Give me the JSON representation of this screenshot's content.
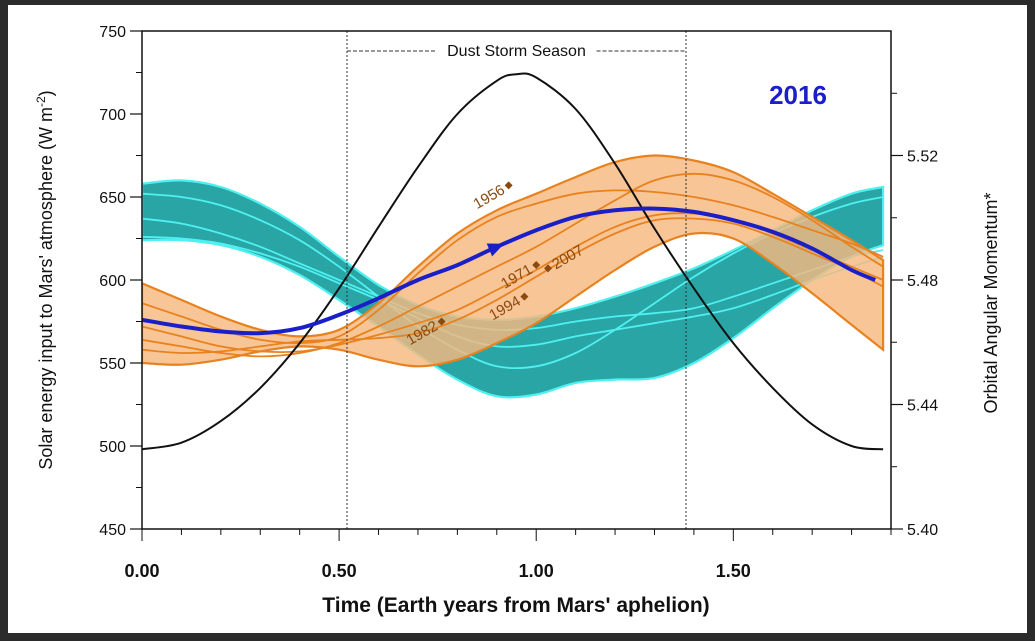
{
  "chart_data": {
    "type": "line",
    "title": "2016",
    "xlabel": "Time (Earth years from Mars' aphelion)",
    "ylabel_left": "Solar energy input to Mars' atmosphere (W m",
    "ylabel_left_sup": "-2",
    "ylabel_left_close": ")",
    "ylabel_right": "Orbital Angular Momentum*",
    "xlim": [
      0,
      1.9
    ],
    "ylim_left": [
      450,
      750
    ],
    "ylim_right": [
      5.4,
      5.56
    ],
    "x_ticks": [
      "0.00",
      "0.50",
      "1.00",
      "1.50"
    ],
    "x_tick_values": [
      0,
      0.5,
      1.0,
      1.5
    ],
    "y_left_ticks": [
      "450",
      "500",
      "550",
      "600",
      "650",
      "700",
      "750"
    ],
    "y_left_tick_values": [
      450,
      500,
      550,
      600,
      650,
      700,
      750
    ],
    "y_right_ticks": [
      "5.40",
      "5.44",
      "5.48",
      "5.52"
    ],
    "y_right_tick_values": [
      5.4,
      5.44,
      5.48,
      5.52
    ],
    "annotation": {
      "label": "Dust Storm Season",
      "x_start": 0.52,
      "x_end": 1.38
    },
    "series": [
      {
        "name": "Solar energy input",
        "axis": "left",
        "color": "#111111",
        "x": [
          0,
          0.1,
          0.2,
          0.3,
          0.4,
          0.5,
          0.6,
          0.7,
          0.8,
          0.9,
          0.95,
          1.0,
          1.1,
          1.2,
          1.3,
          1.4,
          1.5,
          1.6,
          1.7,
          1.8,
          1.88
        ],
        "values": [
          498,
          502,
          515,
          535,
          562,
          595,
          632,
          668,
          700,
          720,
          724,
          722,
          703,
          670,
          631,
          595,
          562,
          535,
          513,
          500,
          498
        ]
      },
      {
        "name": "2016",
        "axis": "left",
        "color": "#1a1fc8",
        "x": [
          0,
          0.1,
          0.2,
          0.3,
          0.4,
          0.5,
          0.6,
          0.7,
          0.8,
          0.9,
          1.0,
          1.1,
          1.2,
          1.3,
          1.4,
          1.5,
          1.6,
          1.7,
          1.8,
          1.86
        ],
        "values": [
          576,
          572,
          569,
          568,
          571,
          579,
          589,
          600,
          609,
          620,
          630,
          638,
          642,
          643,
          641,
          636,
          629,
          619,
          606,
          600
        ]
      }
    ],
    "bands": [
      {
        "name": "teal",
        "color": "#2aa5a5",
        "x": [
          0,
          0.1,
          0.2,
          0.3,
          0.4,
          0.5,
          0.6,
          0.7,
          0.8,
          0.9,
          1.0,
          1.1,
          1.2,
          1.3,
          1.4,
          1.5,
          1.6,
          1.7,
          1.8,
          1.88
        ],
        "upper": [
          658,
          660,
          656,
          646,
          632,
          614,
          597,
          585,
          578,
          576,
          578,
          583,
          590,
          598,
          607,
          618,
          630,
          642,
          652,
          656
        ],
        "lower": [
          624,
          624,
          621,
          614,
          603,
          588,
          572,
          555,
          540,
          530,
          531,
          538,
          540,
          541,
          550,
          565,
          583,
          600,
          614,
          621
        ],
        "lines": [
          [
            637,
            634,
            628,
            620,
            610,
            600,
            590,
            580,
            573,
            570,
            571,
            575,
            578,
            580,
            583,
            590,
            598,
            606,
            614,
            618
          ],
          [
            652,
            650,
            645,
            636,
            624,
            608,
            590,
            572,
            558,
            548,
            548,
            556,
            570,
            586,
            602,
            616,
            628,
            638,
            646,
            650
          ],
          [
            626,
            625,
            622,
            616,
            608,
            598,
            588,
            577,
            566,
            560,
            561,
            566,
            570,
            574,
            578,
            583,
            591,
            600,
            608,
            614
          ]
        ]
      },
      {
        "name": "orange",
        "color": "#f6b880",
        "x": [
          0,
          0.1,
          0.2,
          0.3,
          0.4,
          0.5,
          0.6,
          0.7,
          0.8,
          0.9,
          1.0,
          1.1,
          1.2,
          1.3,
          1.4,
          1.5,
          1.6,
          1.7,
          1.8,
          1.88
        ],
        "upper": [
          598,
          588,
          578,
          570,
          566,
          570,
          586,
          608,
          628,
          642,
          652,
          662,
          671,
          675,
          672,
          665,
          652,
          638,
          624,
          612
        ],
        "lower": [
          550,
          549,
          552,
          557,
          560,
          558,
          552,
          548,
          552,
          562,
          574,
          590,
          606,
          620,
          628,
          625,
          610,
          592,
          573,
          558
        ],
        "lines": [
          [
            586,
            578,
            570,
            564,
            562,
            566,
            582,
            604,
            624,
            638,
            646,
            652,
            654,
            653,
            650,
            645,
            638,
            630,
            622,
            614
          ],
          [
            564,
            560,
            556,
            554,
            556,
            562,
            572,
            584,
            596,
            608,
            620,
            634,
            648,
            660,
            664,
            660,
            650,
            636,
            620,
            608
          ],
          [
            572,
            566,
            560,
            557,
            557,
            561,
            567,
            574,
            582,
            594,
            606,
            620,
            632,
            639,
            640,
            636,
            628,
            618,
            608,
            600
          ],
          [
            558,
            556,
            557,
            560,
            563,
            564,
            565,
            568,
            576,
            588,
            602,
            616,
            628,
            636,
            637,
            634,
            626,
            616,
            606,
            596
          ]
        ]
      }
    ],
    "year_markers": [
      {
        "label": "1956",
        "x": 0.93,
        "y": 657
      },
      {
        "label": "1971",
        "x": 1.0,
        "y": 609
      },
      {
        "label": "2007",
        "x": 1.03,
        "y": 607
      },
      {
        "label": "1994",
        "x": 0.97,
        "y": 590
      },
      {
        "label": "1982",
        "x": 0.76,
        "y": 575
      }
    ]
  }
}
